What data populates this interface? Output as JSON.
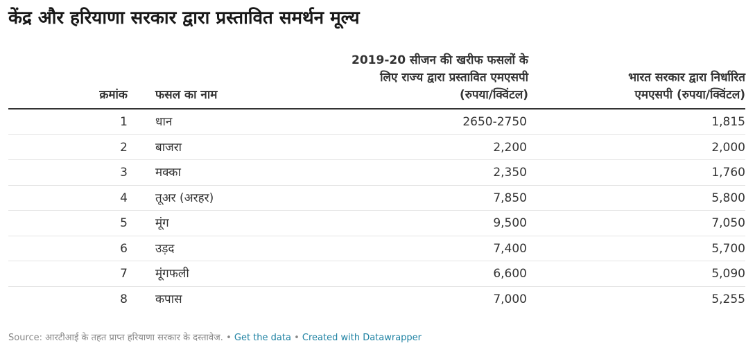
{
  "title": "केंद्र और हरियाणा सरकार द्वारा प्रस्तावित समर्थन मूल्य",
  "table": {
    "columns": {
      "num": "क्रमांक",
      "name": "फसल का नाम",
      "state_msp": "2019-20 सीजन की खरीफ फसलों के\nलिए राज्य द्वारा प्रस्तावित एमएसपी\n(रुपया/क्विंटल)",
      "central_msp": "भारत सरकार द्वारा निर्धारित\nएमएसपी (रुपया/क्विंटल)"
    },
    "rows": [
      {
        "num": "1",
        "name": "धान",
        "state_msp": "2650-2750",
        "central_msp": "1,815"
      },
      {
        "num": "2",
        "name": "बाजरा",
        "state_msp": "2,200",
        "central_msp": "2,000"
      },
      {
        "num": "3",
        "name": "मक्का",
        "state_msp": "2,350",
        "central_msp": "1,760"
      },
      {
        "num": "4",
        "name": "तूअर (अरहर)",
        "state_msp": "7,850",
        "central_msp": "5,800"
      },
      {
        "num": "5",
        "name": "मूंग",
        "state_msp": "9,500",
        "central_msp": "7,050"
      },
      {
        "num": "6",
        "name": "उड़द",
        "state_msp": "7,400",
        "central_msp": "5,700"
      },
      {
        "num": "7",
        "name": "मूंगफली",
        "state_msp": "6,600",
        "central_msp": "5,090"
      },
      {
        "num": "8",
        "name": "कपास",
        "state_msp": "7,000",
        "central_msp": "5,255"
      }
    ]
  },
  "footer": {
    "source": "Source: आरटीआई के तहत प्राप्त हरियाणा सरकार के दस्तावेज.",
    "separator": "•",
    "get_data": "Get the data",
    "created_with": "Created with Datawrapper"
  },
  "colors": {
    "link": "#1d81a2",
    "muted": "#888888",
    "text": "#333333"
  }
}
